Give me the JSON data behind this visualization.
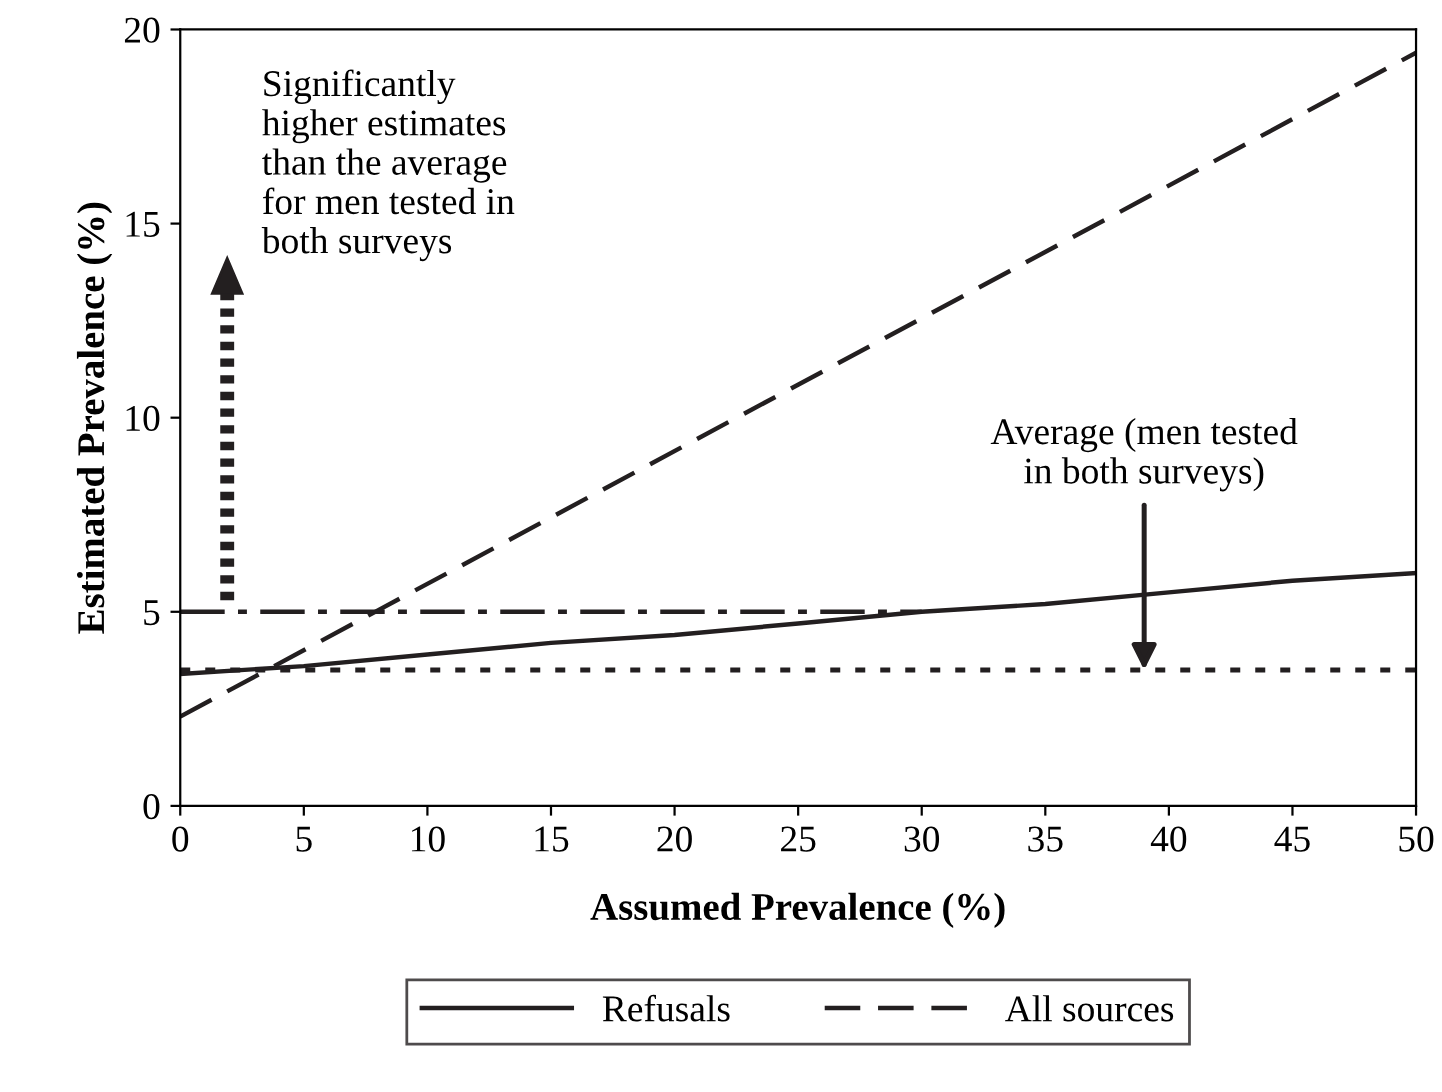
{
  "chart_data": {
    "type": "line",
    "xlabel": "Assumed Prevalence (%)",
    "ylabel": "Estimated Prevalence (%)",
    "x": [
      0,
      5,
      10,
      15,
      20,
      25,
      30,
      35,
      40,
      45,
      50
    ],
    "series": [
      {
        "name": "Refusals",
        "color": "#231f20",
        "line_style": "solid",
        "values": [
          3.4,
          3.6,
          3.9,
          4.2,
          4.4,
          4.7,
          5.0,
          5.2,
          5.5,
          5.8,
          6.0
        ]
      },
      {
        "name": "All sources",
        "color": "#231f20",
        "line_style": "dashed",
        "x": [
          0,
          50
        ],
        "values": [
          2.3,
          19.4
        ]
      },
      {
        "color": "#231f20",
        "line_style": "dashdot",
        "x": [
          0,
          30
        ],
        "values": [
          5,
          5
        ]
      }
    ],
    "ref_lines": [
      {
        "axis": "y",
        "value": 3.5,
        "color": "#231f20",
        "line_style": "dotted"
      }
    ],
    "annotations": [
      "Significantly\nhigher estimates\nthan the average\nfor men tested in\nboth surveys",
      {
        "text": "Average (men tested\nin both surveys)",
        "x": 39,
        "y": 3.5
      }
    ],
    "xlim": [
      0,
      50
    ],
    "ylim": [
      0,
      20
    ],
    "xticks": [
      0,
      5,
      10,
      15,
      20,
      25,
      30,
      35,
      40,
      45,
      50
    ],
    "yticks": [
      0,
      5,
      10,
      15,
      20
    ],
    "grid": false,
    "legend": "bottom",
    "marker": "none"
  }
}
